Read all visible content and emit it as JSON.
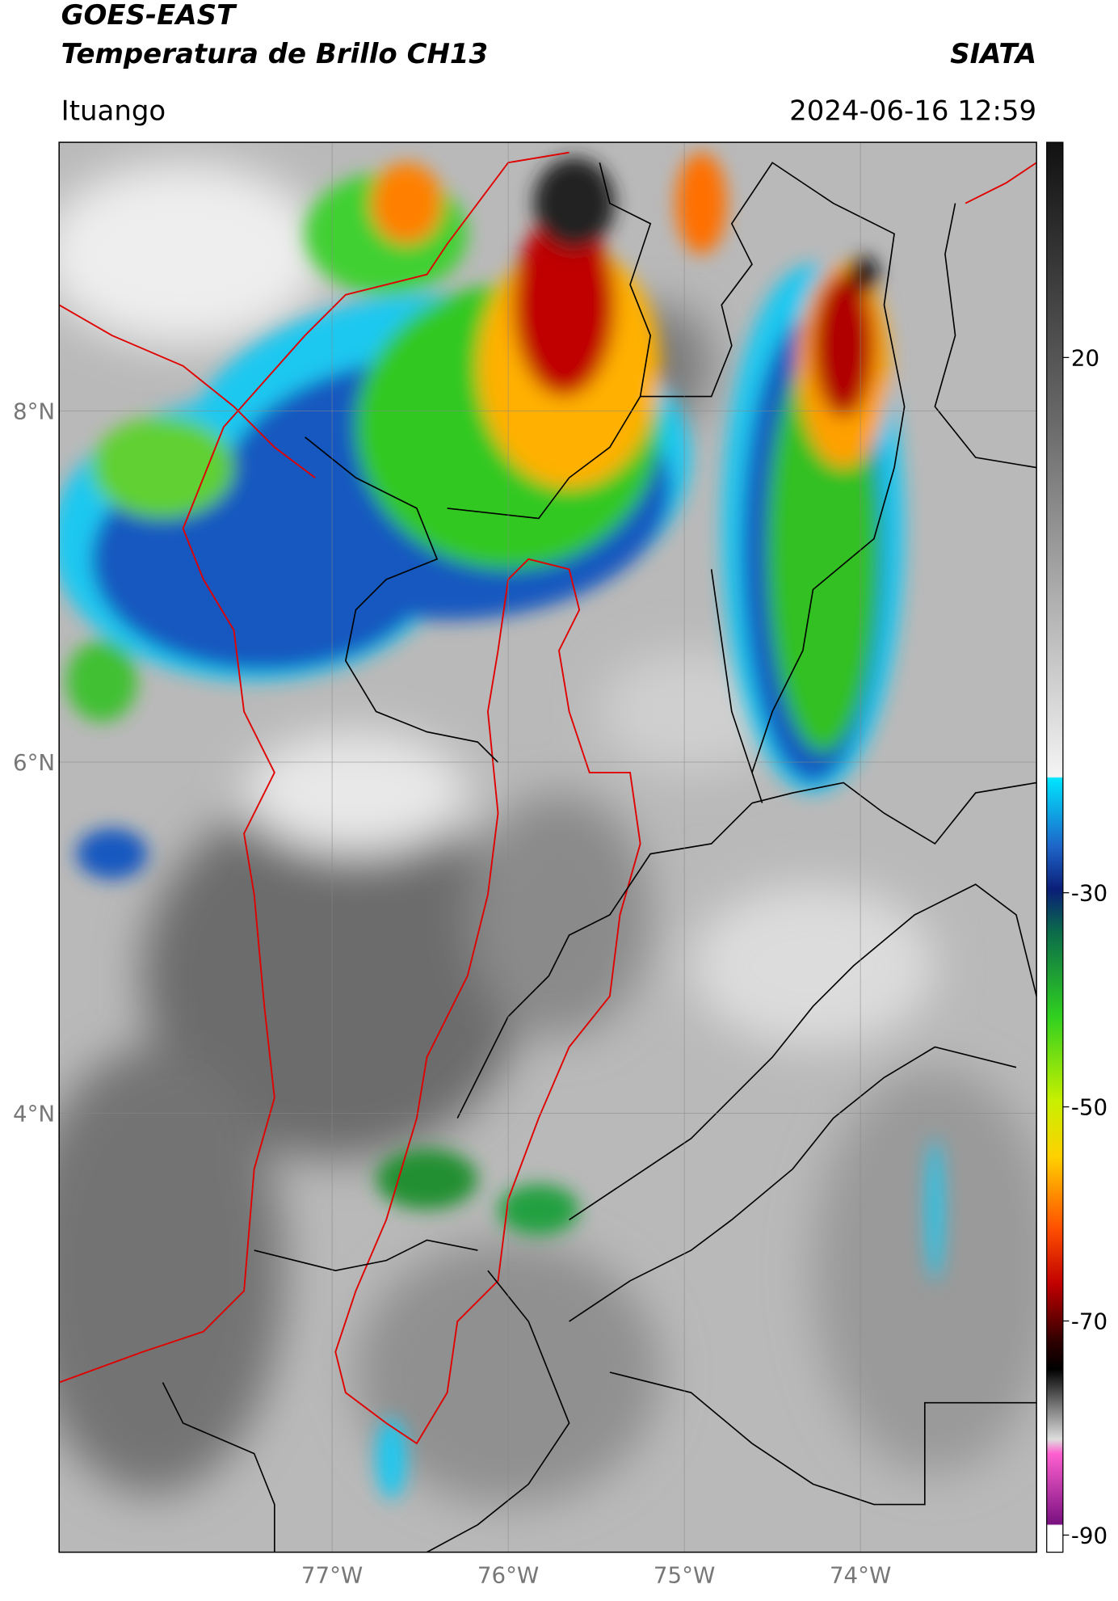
{
  "header": {
    "title_line1": "GOES-EAST",
    "title_line2": "Temperatura de Brillo CH13",
    "agency": "SIATA",
    "location": "Ituango",
    "timestamp": "2024-06-16 12:59"
  },
  "map": {
    "lonlim": [
      -78.55,
      -73.0
    ],
    "latlim": [
      1.5,
      9.53
    ],
    "lat_ticks": [
      {
        "value": 8,
        "label": "8°N"
      },
      {
        "value": 6,
        "label": "6°N"
      },
      {
        "value": 4,
        "label": "4°N"
      }
    ],
    "lon_ticks": [
      {
        "value": -77,
        "label": "77°W"
      },
      {
        "value": -76,
        "label": "76°W"
      },
      {
        "value": -75,
        "label": "75°W"
      },
      {
        "value": -74,
        "label": "74°W"
      }
    ],
    "grid": true
  },
  "colorbar": {
    "lim": [
      -91.6,
      40.1
    ],
    "ticks": [
      20,
      -30,
      -50,
      -70,
      -90
    ]
  }
}
